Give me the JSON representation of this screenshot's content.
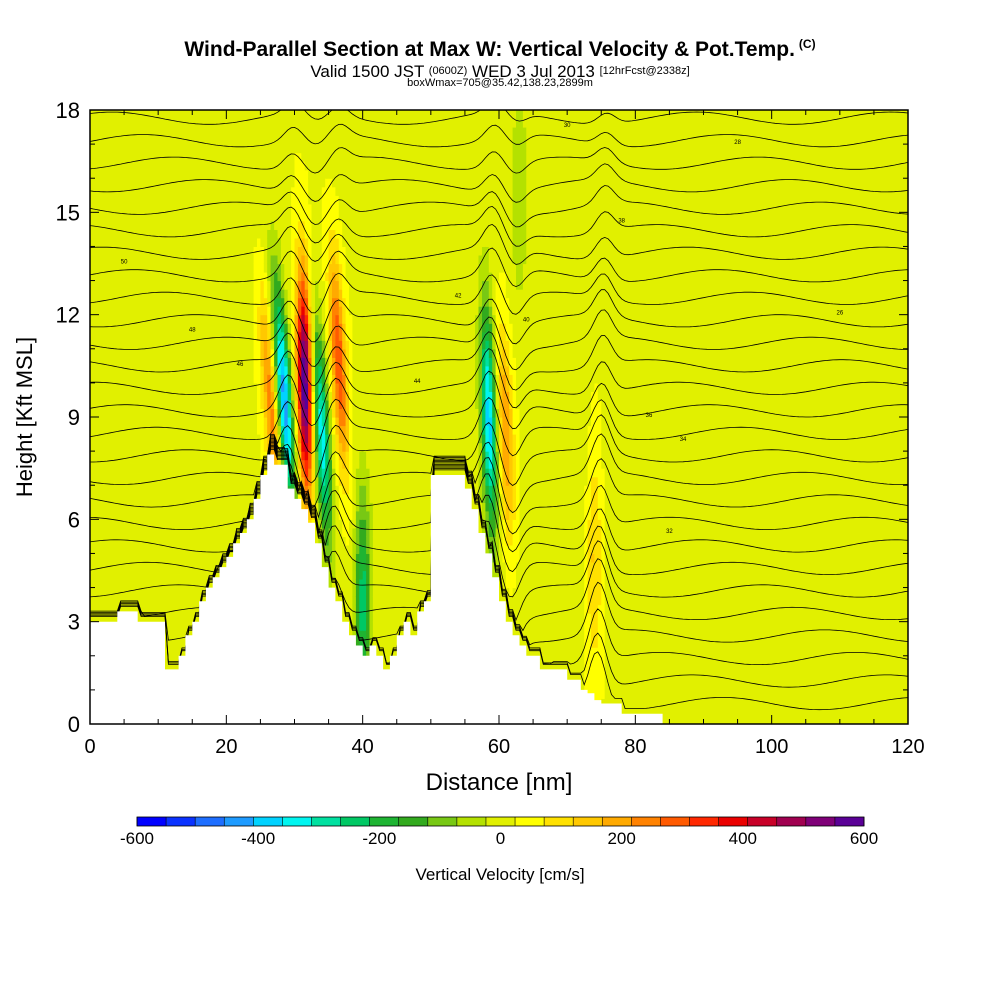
{
  "header": {
    "title": "Wind-Parallel Section at Max W: Vertical Velocity & Pot.Temp.",
    "title_mark": "(C)",
    "valid_prefix": "Valid 1500 JST",
    "valid_utc": "(0600Z)",
    "valid_date": "WED 3 Jul 2013",
    "forecast_info": "[12hrFcst@2338z]",
    "box_info": "boxWmax=705@35.42,138.23,2899m"
  },
  "chart_data": {
    "type": "heatmap",
    "title": "Wind-Parallel Section at Max W: Vertical Velocity & Pot.Temp.",
    "xlabel": "Distance [nm]",
    "ylabel": "Height [Kft MSL]",
    "xlim": [
      0,
      120
    ],
    "ylim": [
      0,
      18
    ],
    "x_ticks": [
      0,
      20,
      40,
      60,
      80,
      100,
      120
    ],
    "y_ticks": [
      0,
      3,
      6,
      9,
      12,
      15,
      18
    ],
    "colorbar": {
      "label": "Vertical Velocity [cm/s]",
      "range": [
        -600,
        600
      ],
      "tick_values": [
        -600,
        -400,
        -200,
        0,
        200,
        400,
        600
      ],
      "colors": [
        "#0000ff",
        "#0a32ff",
        "#1e6eff",
        "#1e9bff",
        "#00d2ff",
        "#00f5f0",
        "#00e0a0",
        "#00c864",
        "#1eb432",
        "#32aa1e",
        "#78c814",
        "#b4e100",
        "#e1f000",
        "#ffff00",
        "#ffe100",
        "#ffc800",
        "#ffaa00",
        "#ff8200",
        "#ff5a00",
        "#ff2800",
        "#eb0000",
        "#c80028",
        "#a00050",
        "#7f0078",
        "#5a0096"
      ]
    },
    "terrain_profile": {
      "x": [
        0,
        4,
        4,
        7,
        7,
        11,
        11,
        13,
        13,
        14,
        14,
        15,
        15,
        16,
        16,
        17,
        17,
        18,
        18,
        19,
        19,
        20,
        20,
        21,
        21,
        22,
        22,
        23,
        23,
        24,
        24,
        25,
        25,
        26,
        26,
        27,
        27,
        29,
        29,
        30,
        30,
        31,
        31,
        32,
        32,
        33,
        33,
        34,
        34,
        35,
        35,
        36,
        36,
        37,
        37,
        38,
        38,
        39,
        39,
        40,
        40,
        41,
        41,
        42,
        42,
        43,
        43,
        44,
        44,
        45,
        45,
        46,
        46,
        47,
        47,
        48,
        48,
        49,
        49,
        50,
        50,
        55,
        55,
        56,
        56,
        57,
        57,
        58,
        58,
        59,
        59,
        60,
        60,
        61,
        61,
        62,
        62,
        63,
        63,
        64,
        64,
        66,
        66,
        67,
        67,
        68,
        68,
        69,
        69,
        70,
        70,
        71,
        71,
        72,
        72,
        73,
        73,
        74,
        74,
        75,
        75,
        76,
        76,
        77,
        77,
        78,
        78,
        79,
        79,
        80,
        80,
        81,
        81,
        82,
        82,
        84,
        84,
        85,
        85,
        87,
        87,
        120
      ],
      "y": [
        3.0,
        3.0,
        3.3,
        3.3,
        3.0,
        3.0,
        1.6,
        1.6,
        2.0,
        2.0,
        2.6,
        2.6,
        3.0,
        3.0,
        3.6,
        3.6,
        4.0,
        4.0,
        4.3,
        4.3,
        4.6,
        4.6,
        4.9,
        4.9,
        5.3,
        5.3,
        5.6,
        5.6,
        6.0,
        6.0,
        6.6,
        6.6,
        7.3,
        7.3,
        7.9,
        7.9,
        7.6,
        7.6,
        6.9,
        6.9,
        6.6,
        6.6,
        6.3,
        6.3,
        5.9,
        5.9,
        5.3,
        5.3,
        4.6,
        4.6,
        4.0,
        4.0,
        3.6,
        3.6,
        3.0,
        3.0,
        2.6,
        2.6,
        2.3,
        2.3,
        2.0,
        2.0,
        2.3,
        2.3,
        2.0,
        2.0,
        1.6,
        1.6,
        2.0,
        2.0,
        2.6,
        2.6,
        3.0,
        3.0,
        2.6,
        2.6,
        3.3,
        3.3,
        3.6,
        3.6,
        7.3,
        7.3,
        6.9,
        6.9,
        6.3,
        6.3,
        5.6,
        5.6,
        5.0,
        5.0,
        4.3,
        4.3,
        3.6,
        3.6,
        3.0,
        3.0,
        2.6,
        2.6,
        2.3,
        2.3,
        2.0,
        2.0,
        1.6,
        1.6,
        1.6,
        1.6,
        1.6,
        1.6,
        1.6,
        1.6,
        1.3,
        1.3,
        1.3,
        1.3,
        1.0,
        1.0,
        0.9,
        0.9,
        0.7,
        0.7,
        0.6,
        0.6,
        0.6,
        0.6,
        0.6,
        0.6,
        0.3,
        0.3,
        0.3,
        0.3,
        0.3,
        0.3,
        0.3,
        0.3,
        0.3,
        0.3,
        0.0,
        0.0,
        0.0,
        0.0,
        0.0,
        0.0
      ]
    },
    "vertical_velocity_features": [
      {
        "x": 26.5,
        "y": 9.5,
        "w": 230,
        "tilt": -0.35
      },
      {
        "x": 28.5,
        "y": 9.5,
        "w": -450,
        "tilt": -0.35
      },
      {
        "x": 31.5,
        "y": 10.0,
        "w": 600,
        "tilt": -0.1
      },
      {
        "x": 34.0,
        "y": 8.5,
        "w": -350,
        "tilt": -0.25
      },
      {
        "x": 36.5,
        "y": 10.5,
        "w": 300,
        "tilt": -0.25
      },
      {
        "x": 40.0,
        "y": 3.5,
        "w": -250,
        "tilt": 0
      },
      {
        "x": 58.5,
        "y": 9.0,
        "w": -400,
        "tilt": -0.15
      },
      {
        "x": 61.0,
        "y": 8.5,
        "w": 200,
        "tilt": -0.15
      },
      {
        "x": 74.0,
        "y": 5.0,
        "w": 120,
        "tilt": 0
      },
      {
        "x": 63.0,
        "y": 16.0,
        "w": -80,
        "tilt": 0
      }
    ],
    "theta_contours": {
      "count": 27,
      "labels": [
        "50",
        "48",
        "46",
        "44",
        "42",
        "40",
        "38",
        "36",
        "34",
        "32",
        "30",
        "28",
        "26"
      ]
    }
  }
}
